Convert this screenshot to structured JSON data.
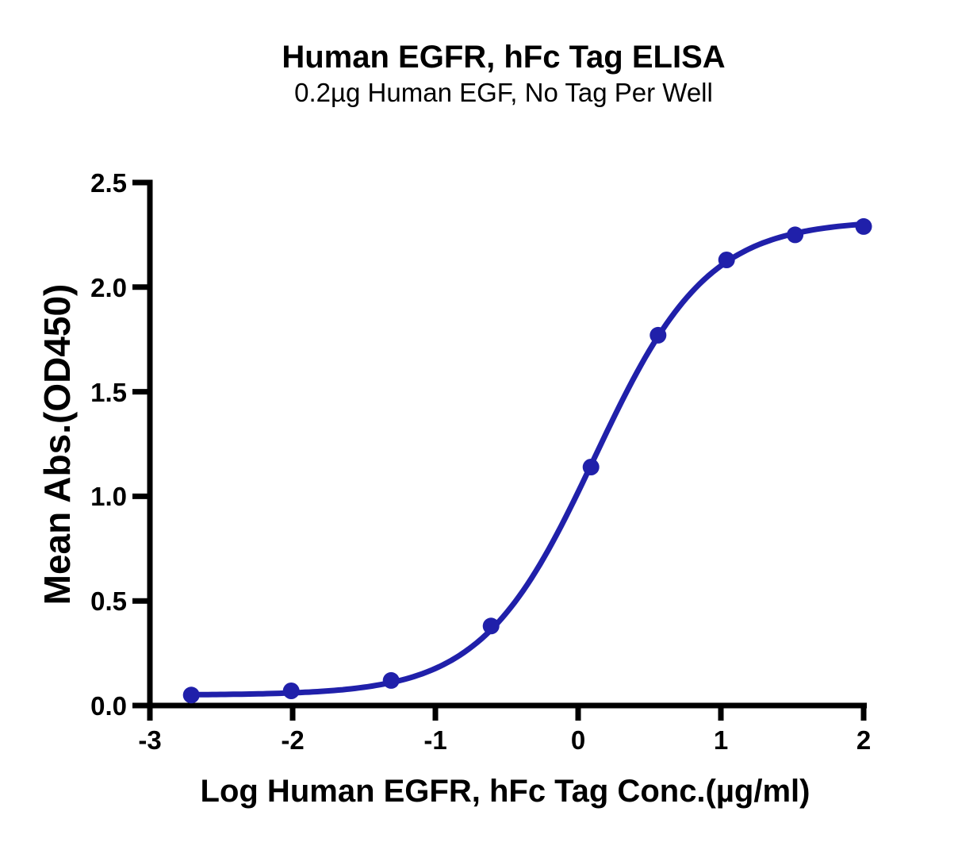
{
  "chart_data": {
    "type": "scatter",
    "title": "Human EGFR, hFc Tag ELISA",
    "subtitle": "0.2µg Human EGF, No Tag Per Well",
    "xlabel": "Log Human EGFR, hFc Tag Conc.(µg/ml)",
    "ylabel": "Mean Abs.(OD450)",
    "xlim": [
      -3,
      2
    ],
    "ylim": [
      0.0,
      2.5
    ],
    "xtick_labels": [
      "-3",
      "-2",
      "-1",
      "0",
      "1",
      "2"
    ],
    "ytick_labels": [
      "0.0",
      "0.5",
      "1.0",
      "1.5",
      "2.0",
      "2.5"
    ],
    "grid": false,
    "legend_position": "none",
    "series": [
      {
        "color": "#2020AA",
        "marker": "circle",
        "line": "sigmoid-fit",
        "points": [
          {
            "x": -2.71,
            "y": 0.05
          },
          {
            "x": -2.01,
            "y": 0.07
          },
          {
            "x": -1.31,
            "y": 0.12
          },
          {
            "x": -0.61,
            "y": 0.38
          },
          {
            "x": 0.09,
            "y": 1.14
          },
          {
            "x": 0.56,
            "y": 1.77
          },
          {
            "x": 1.04,
            "y": 2.13
          },
          {
            "x": 1.52,
            "y": 2.25
          },
          {
            "x": 2.0,
            "y": 2.29
          }
        ],
        "fit": {
          "model": "4PL",
          "bottom": 0.05,
          "top": 2.32,
          "logEC50": 0.115,
          "hill": 1.1
        }
      }
    ]
  }
}
